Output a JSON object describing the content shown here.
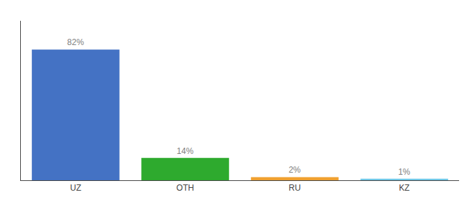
{
  "chart_data": {
    "type": "bar",
    "categories": [
      "UZ",
      "OTH",
      "RU",
      "KZ"
    ],
    "values": [
      82,
      14,
      2,
      1
    ],
    "value_labels": [
      "82%",
      "14%",
      "2%",
      "1%"
    ],
    "colors": [
      "#4472c4",
      "#2eaa2e",
      "#f0a030",
      "#70c8e8"
    ],
    "data_labels": true,
    "ylim": [
      0,
      100
    ],
    "yticks": [],
    "tick_labels": "x",
    "grid": false
  }
}
